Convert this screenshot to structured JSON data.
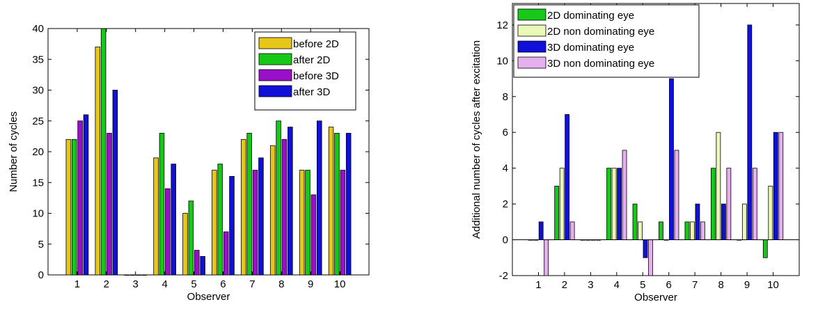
{
  "chart_data": [
    {
      "type": "bar",
      "xlabel": "Observer",
      "ylabel": "Number of cycles",
      "categories": [
        "1",
        "2",
        "3",
        "4",
        "5",
        "6",
        "7",
        "8",
        "9",
        "10"
      ],
      "ylim": [
        0,
        40
      ],
      "yticks": [
        0,
        5,
        10,
        15,
        20,
        25,
        30,
        35,
        40
      ],
      "legend_position": "top-right",
      "series": [
        {
          "name": "before 2D",
          "color": "#e6c619",
          "values": [
            22,
            37,
            0,
            19,
            10,
            17,
            22,
            21,
            17,
            24
          ]
        },
        {
          "name": "after 2D",
          "color": "#18c818",
          "values": [
            22,
            40,
            0,
            23,
            12,
            18,
            23,
            25,
            17,
            23
          ]
        },
        {
          "name": "before 3D",
          "color": "#9a10c9",
          "values": [
            25,
            23,
            0,
            14,
            4,
            7,
            17,
            22,
            13,
            17
          ]
        },
        {
          "name": "after 3D",
          "color": "#1010d8",
          "values": [
            26,
            30,
            0,
            18,
            3,
            16,
            19,
            24,
            25,
            23
          ]
        }
      ]
    },
    {
      "type": "bar",
      "xlabel": "Observer",
      "ylabel": "Additional number of cycles after excitation",
      "categories": [
        "1",
        "2",
        "3",
        "4",
        "5",
        "6",
        "7",
        "8",
        "9",
        "10"
      ],
      "ylim": [
        -2,
        13.2
      ],
      "yticks": [
        -2,
        0,
        2,
        4,
        6,
        8,
        10,
        12
      ],
      "legend_position": "top-left",
      "series": [
        {
          "name": "2D dominating eye",
          "color": "#18c818",
          "values": [
            0,
            3,
            0,
            4,
            2,
            1,
            1,
            4,
            0,
            -1
          ]
        },
        {
          "name": "2D non dominating eye",
          "color": "#eaf8b8",
          "values": [
            0,
            4,
            0,
            4,
            1,
            0,
            1,
            6,
            2,
            3
          ]
        },
        {
          "name": "3D dominating eye",
          "color": "#1010d8",
          "values": [
            1,
            7,
            0,
            4,
            -1,
            9,
            2,
            2,
            12,
            6
          ]
        },
        {
          "name": "3D non dominating eye",
          "color": "#e6b0f0",
          "values": [
            -2,
            1,
            0,
            5,
            -2,
            5,
            1,
            4,
            4,
            6
          ]
        }
      ]
    }
  ]
}
